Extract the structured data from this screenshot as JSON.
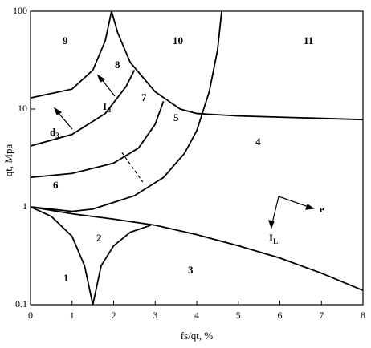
{
  "chart_data": {
    "type": "line",
    "log_y": true,
    "grid": false,
    "color": "#000000",
    "xlabel": "fs/qt, %",
    "ylabel": "qt, Mpa",
    "xlim": [
      0,
      8
    ],
    "ylim": [
      0.1,
      100
    ],
    "xticks": [
      0,
      1,
      2,
      3,
      4,
      5,
      6,
      7,
      8
    ],
    "yticks": [
      0.1,
      1,
      10,
      100
    ],
    "series": [
      {
        "x": [
          0,
          0.5,
          1,
          1.3,
          1.5
        ],
        "values": [
          1,
          0.8,
          0.5,
          0.25,
          0.1
        ]
      },
      {
        "x": [
          1.5,
          1.7,
          2.0,
          2.4,
          2.9
        ],
        "values": [
          0.1,
          0.25,
          0.4,
          0.55,
          0.65
        ]
      },
      {
        "x": [
          0,
          1,
          2,
          3,
          4,
          5,
          6,
          7,
          8
        ],
        "values": [
          1,
          0.85,
          0.75,
          0.65,
          0.52,
          0.4,
          0.3,
          0.21,
          0.14
        ]
      },
      {
        "x": [
          0,
          1,
          1.5,
          2.5,
          3.2,
          3.7,
          4,
          4.3,
          4.5,
          4.6
        ],
        "values": [
          1,
          0.9,
          0.95,
          1.3,
          2,
          3.5,
          6,
          15,
          40,
          100
        ]
      },
      {
        "x": [
          0,
          1,
          2,
          2.6,
          3,
          3.2
        ],
        "values": [
          2,
          2.2,
          2.8,
          4,
          7,
          12
        ]
      },
      {
        "x": [
          0,
          1,
          1.8,
          2.3,
          2.5
        ],
        "values": [
          4.2,
          5.5,
          9,
          17,
          25
        ]
      },
      {
        "x": [
          0,
          1,
          1.5,
          1.8,
          1.95
        ],
        "values": [
          13,
          16,
          25,
          50,
          100
        ]
      },
      {
        "x": [
          1.95,
          2.1,
          2.4,
          3,
          3.6,
          4,
          5,
          8
        ],
        "values": [
          100,
          60,
          30,
          15,
          10,
          9,
          8.5,
          7.8
        ]
      },
      {
        "x": [
          2.2,
          2.7
        ],
        "values": [
          3.6,
          1.8
        ],
        "dashed": true
      }
    ],
    "regions": [
      "1",
      "2",
      "3",
      "4",
      "5",
      "6",
      "7",
      "8",
      "9",
      "10",
      "11"
    ],
    "annotations": [
      {
        "text": "I",
        "sub": "d"
      },
      {
        "text": "d",
        "sub": "3"
      },
      {
        "text": "I",
        "sub": "L"
      },
      {
        "text": "e"
      }
    ]
  }
}
